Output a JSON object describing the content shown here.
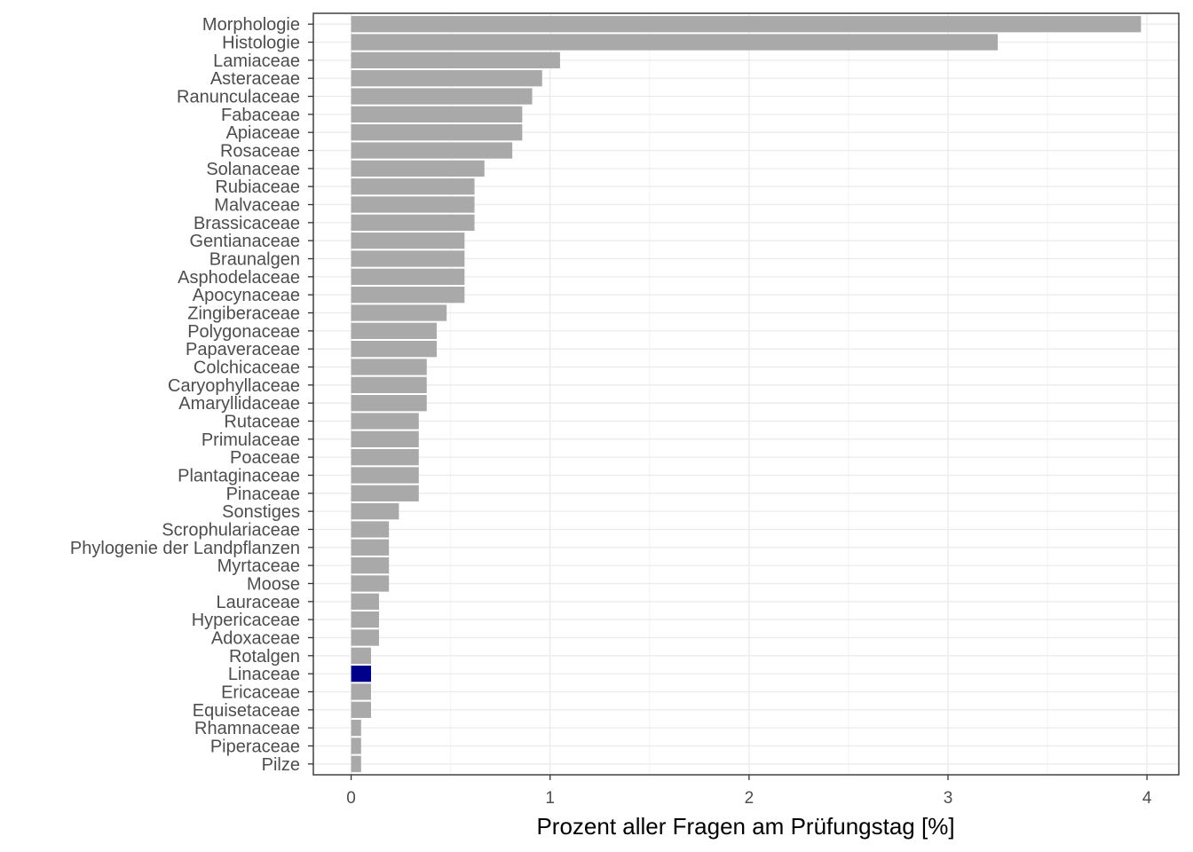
{
  "chart_data": {
    "type": "bar",
    "orientation": "horizontal",
    "title": "",
    "xlabel": "Prozent aller Fragen am Prüfungstag [%]",
    "ylabel": "",
    "xlim": [
      -0.19,
      4.16
    ],
    "xticks": [
      0,
      1,
      2,
      3,
      4
    ],
    "grid": true,
    "legend": "none",
    "colors": {
      "default": "#a9a9a9",
      "highlight": "#00008b"
    },
    "highlight": "Linaceae",
    "categories": [
      "Morphologie",
      "Histologie",
      "Lamiaceae",
      "Asteraceae",
      "Ranunculaceae",
      "Fabaceae",
      "Apiaceae",
      "Rosaceae",
      "Solanaceae",
      "Rubiaceae",
      "Malvaceae",
      "Brassicaceae",
      "Gentianaceae",
      "Braunalgen",
      "Asphodelaceae",
      "Apocynaceae",
      "Zingiberaceae",
      "Polygonaceae",
      "Papaveraceae",
      "Colchicaceae",
      "Caryophyllaceae",
      "Amaryllidaceae",
      "Rutaceae",
      "Primulaceae",
      "Poaceae",
      "Plantaginaceae",
      "Pinaceae",
      "Sonstiges",
      "Scrophulariaceae",
      "Phylogenie der Landpflanzen",
      "Myrtaceae",
      "Moose",
      "Lauraceae",
      "Hypericaceae",
      "Adoxaceae",
      "Rotalgen",
      "Linaceae",
      "Ericaceae",
      "Equisetaceae",
      "Rhamnaceae",
      "Piperaceae",
      "Pilze"
    ],
    "values": [
      3.97,
      3.25,
      1.05,
      0.96,
      0.91,
      0.86,
      0.86,
      0.81,
      0.67,
      0.62,
      0.62,
      0.62,
      0.57,
      0.57,
      0.57,
      0.57,
      0.48,
      0.43,
      0.43,
      0.38,
      0.38,
      0.38,
      0.34,
      0.34,
      0.34,
      0.34,
      0.34,
      0.24,
      0.19,
      0.19,
      0.19,
      0.19,
      0.14,
      0.14,
      0.14,
      0.1,
      0.1,
      0.1,
      0.1,
      0.05,
      0.05,
      0.05
    ]
  }
}
